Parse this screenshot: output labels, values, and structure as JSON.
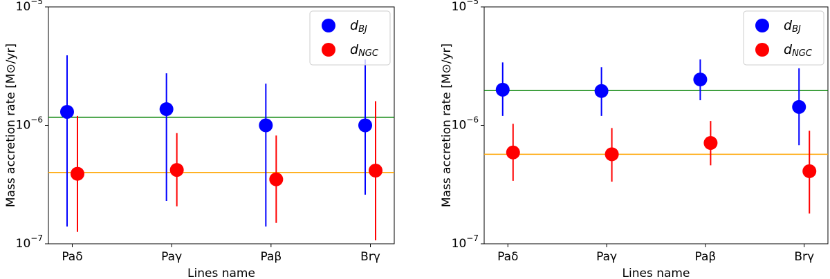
{
  "chart_data": [
    {
      "type": "errorbar",
      "xlabel": "Lines name",
      "ylabel": "Mass accretion rate [M⊙/yr]",
      "categories": [
        "Paδ",
        "Paγ",
        "Paβ",
        "Brγ"
      ],
      "log_y": true,
      "ylim": [
        1e-07,
        1e-05
      ],
      "yticks": [
        {
          "value": 1e-07,
          "label": "10−7"
        },
        {
          "value": 1e-06,
          "label": "10−6"
        },
        {
          "value": 1e-05,
          "label": "10−5"
        }
      ],
      "legend": "upper right",
      "series": [
        {
          "name": "dBJ",
          "color": "#0000ff",
          "values": [
            1.3e-06,
            1.37e-06,
            1e-06,
            1e-06
          ],
          "lower": [
            1.4e-07,
            2.3e-07,
            1.4e-07,
            2.6e-07
          ],
          "upper": [
            3.9e-06,
            2.75e-06,
            2.25e-06,
            3.6e-06
          ]
        },
        {
          "name": "dNGC",
          "color": "#ff0000",
          "values": [
            3.9e-07,
            4.2e-07,
            3.5e-07,
            4.15e-07
          ],
          "lower": [
            1.26e-07,
            2.07e-07,
            1.5e-07,
            1.07e-07
          ],
          "upper": [
            1.2e-06,
            8.6e-07,
            8.2e-07,
            1.6e-06
          ]
        }
      ],
      "hlines": [
        {
          "value": 1.17e-06,
          "color": "#008000"
        },
        {
          "value": 4e-07,
          "color": "#ffa500"
        }
      ]
    },
    {
      "type": "errorbar",
      "xlabel": "Lines name",
      "ylabel": "Mass accretion rate [M⊙/yr]",
      "categories": [
        "Paδ",
        "Paγ",
        "Paβ",
        "Brγ"
      ],
      "log_y": true,
      "ylim": [
        1e-07,
        1e-05
      ],
      "yticks": [
        {
          "value": 1e-07,
          "label": "10−7"
        },
        {
          "value": 1e-06,
          "label": "10−6"
        },
        {
          "value": 1e-05,
          "label": "10−5"
        }
      ],
      "legend": "upper right",
      "series": [
        {
          "name": "dBJ",
          "color": "#0000ff",
          "values": [
            2e-06,
            1.95e-06,
            2.44e-06,
            1.43e-06
          ],
          "lower": [
            1.2e-06,
            1.2e-06,
            1.63e-06,
            6.8e-07
          ],
          "upper": [
            3.4e-06,
            3.1e-06,
            3.6e-06,
            3.03e-06
          ]
        },
        {
          "name": "dNGC",
          "color": "#ff0000",
          "values": [
            5.9e-07,
            5.7e-07,
            7.1e-07,
            4.1e-07
          ],
          "lower": [
            3.4e-07,
            3.35e-07,
            4.6e-07,
            1.8e-07
          ],
          "upper": [
            1.03e-06,
            9.5e-07,
            1.09e-06,
            9e-07
          ]
        }
      ],
      "hlines": [
        {
          "value": 1.97e-06,
          "color": "#008000"
        },
        {
          "value": 5.7e-07,
          "color": "#ffa500"
        }
      ]
    }
  ]
}
